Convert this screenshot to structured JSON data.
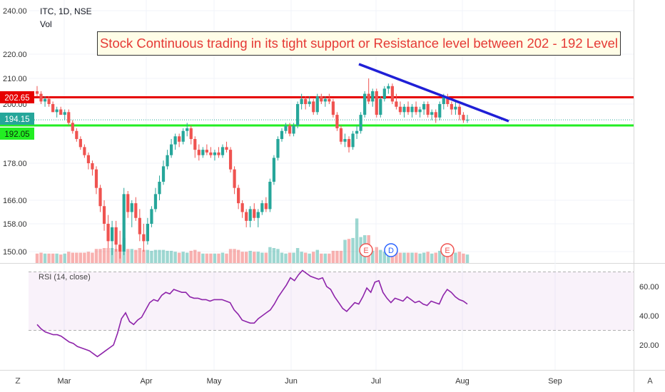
{
  "header": {
    "symbol_line": "ITC, 1D, NSE",
    "volume_label": "Vol"
  },
  "annotation": {
    "text": "Stock Continuous trading in its tight support or Resistance level between 202 - 192 Level",
    "color": "#e53935"
  },
  "colors": {
    "up": "#26a69a",
    "down": "#ef5350",
    "resistance_line": "#e60000",
    "support_line": "#22ee22",
    "trendline": "#1f1fd6",
    "rsi_line": "#8e24aa"
  },
  "price_axis": {
    "ticks": [
      "240.00",
      "220.00",
      "210.00",
      "200.00",
      "178.00",
      "166.00",
      "158.00",
      "150.00"
    ],
    "tick_values": [
      240,
      220,
      210,
      200,
      178,
      166,
      158,
      150
    ],
    "badges": [
      {
        "label": "202.65",
        "value": 202.65,
        "color": "#e60000"
      },
      {
        "label": "194.15",
        "value": 194.15,
        "color": "#26a69a"
      },
      {
        "label": "192.05",
        "value": 192.05,
        "color": "#22ee22"
      }
    ]
  },
  "time_axis": {
    "labels": [
      "Mar",
      "Apr",
      "May",
      "Jun",
      "Jul",
      "Aug",
      "Sep"
    ]
  },
  "events": [
    {
      "label": "E",
      "color": "#ef5350"
    },
    {
      "label": "D",
      "color": "#2962ff"
    },
    {
      "label": "E",
      "color": "#ef5350"
    }
  ],
  "rsi_panel": {
    "label": "RSI (14, close)",
    "ticks": [
      "60.00",
      "40.00",
      "20.00"
    ],
    "tick_values": [
      60,
      40,
      20
    ],
    "upper_band": 70,
    "lower_band": 30
  },
  "corner_buttons": {
    "left": "Z",
    "right": "A"
  },
  "chart_data": {
    "type": "candlestick",
    "title": "ITC, 1D, NSE",
    "ylim": [
      147,
      244
    ],
    "levels": {
      "resistance": 202.65,
      "support": 192.05,
      "last": 194.15
    },
    "trendline": {
      "start": [
        "Jun 26",
        214
      ],
      "end": [
        "Aug 16",
        195
      ]
    },
    "candles_ohlc": [
      [
        205,
        207,
        203,
        204
      ],
      [
        204,
        205,
        200,
        201
      ],
      [
        201,
        203,
        199,
        202
      ],
      [
        202,
        203,
        199,
        200
      ],
      [
        200,
        201,
        197,
        197
      ],
      [
        197,
        199,
        195,
        198
      ],
      [
        198,
        199,
        196,
        196
      ],
      [
        196,
        198,
        194,
        197
      ],
      [
        197,
        198,
        192,
        193
      ],
      [
        193,
        194,
        189,
        190
      ],
      [
        190,
        191,
        186,
        187
      ],
      [
        187,
        188,
        183,
        184
      ],
      [
        184,
        185,
        180,
        181
      ],
      [
        181,
        182,
        176,
        178
      ],
      [
        178,
        179,
        174,
        176
      ],
      [
        176,
        177,
        168,
        170
      ],
      [
        170,
        171,
        162,
        164
      ],
      [
        164,
        166,
        156,
        158
      ],
      [
        158,
        161,
        151,
        153
      ],
      [
        153,
        159,
        149,
        157
      ],
      [
        157,
        159,
        150,
        152
      ],
      [
        152,
        156,
        148,
        150
      ],
      [
        150,
        170,
        149,
        168
      ],
      [
        168,
        169,
        160,
        162
      ],
      [
        162,
        166,
        157,
        165
      ],
      [
        165,
        167,
        159,
        160
      ],
      [
        160,
        163,
        153,
        155
      ],
      [
        155,
        158,
        150,
        153
      ],
      [
        153,
        160,
        152,
        158
      ],
      [
        158,
        164,
        157,
        163
      ],
      [
        163,
        170,
        162,
        168
      ],
      [
        168,
        174,
        166,
        172
      ],
      [
        172,
        179,
        171,
        177
      ],
      [
        177,
        183,
        176,
        181
      ],
      [
        181,
        187,
        180,
        185
      ],
      [
        185,
        189,
        183,
        188
      ],
      [
        188,
        189,
        184,
        186
      ],
      [
        186,
        191,
        185,
        190
      ],
      [
        190,
        193,
        188,
        191
      ],
      [
        191,
        192,
        185,
        187
      ],
      [
        187,
        188,
        180,
        183
      ],
      [
        183,
        185,
        179,
        181
      ],
      [
        181,
        184,
        180,
        183
      ],
      [
        183,
        185,
        181,
        182
      ],
      [
        182,
        184,
        180,
        181
      ],
      [
        181,
        183,
        179,
        182
      ],
      [
        182,
        184,
        180,
        181
      ],
      [
        181,
        185,
        180,
        184
      ],
      [
        184,
        186,
        182,
        183
      ],
      [
        183,
        184,
        175,
        176
      ],
      [
        176,
        177,
        168,
        170
      ],
      [
        170,
        171,
        163,
        165
      ],
      [
        165,
        166,
        160,
        162
      ],
      [
        162,
        163,
        157,
        159
      ],
      [
        159,
        164,
        157,
        163
      ],
      [
        163,
        165,
        159,
        160
      ],
      [
        160,
        163,
        157,
        162
      ],
      [
        162,
        166,
        161,
        165
      ],
      [
        165,
        167,
        162,
        163
      ],
      [
        163,
        173,
        162,
        172
      ],
      [
        172,
        181,
        171,
        180
      ],
      [
        180,
        188,
        179,
        187
      ],
      [
        187,
        191,
        186,
        190
      ],
      [
        190,
        193,
        189,
        192
      ],
      [
        192,
        193,
        188,
        189
      ],
      [
        189,
        193,
        188,
        192
      ],
      [
        192,
        201,
        191,
        200
      ],
      [
        200,
        204,
        198,
        202
      ],
      [
        202,
        203,
        198,
        200
      ],
      [
        200,
        203,
        199,
        201
      ],
      [
        201,
        202,
        196,
        197
      ],
      [
        197,
        204,
        196,
        203
      ],
      [
        203,
        204,
        200,
        201
      ],
      [
        201,
        203,
        199,
        202
      ],
      [
        202,
        204,
        200,
        201
      ],
      [
        201,
        202,
        195,
        196
      ],
      [
        196,
        197,
        190,
        191
      ],
      [
        191,
        192,
        185,
        186
      ],
      [
        186,
        189,
        184,
        187
      ],
      [
        187,
        188,
        182,
        184
      ],
      [
        184,
        190,
        183,
        189
      ],
      [
        189,
        192,
        187,
        190
      ],
      [
        190,
        197,
        189,
        196
      ],
      [
        196,
        205,
        195,
        204
      ],
      [
        204,
        210,
        200,
        201
      ],
      [
        201,
        206,
        199,
        205
      ],
      [
        205,
        206,
        195,
        196
      ],
      [
        196,
        203,
        195,
        202
      ],
      [
        202,
        207,
        201,
        206
      ],
      [
        206,
        208,
        204,
        207
      ],
      [
        207,
        208,
        200,
        201
      ],
      [
        201,
        204,
        198,
        199
      ],
      [
        199,
        201,
        196,
        197
      ],
      [
        197,
        200,
        195,
        199
      ],
      [
        199,
        201,
        196,
        197
      ],
      [
        197,
        200,
        195,
        199
      ],
      [
        199,
        201,
        196,
        197
      ],
      [
        197,
        199,
        195,
        198
      ],
      [
        198,
        201,
        196,
        200
      ],
      [
        200,
        201,
        195,
        196
      ],
      [
        196,
        198,
        194,
        197
      ],
      [
        197,
        198,
        193,
        195
      ],
      [
        195,
        201,
        194,
        200
      ],
      [
        200,
        204,
        198,
        203
      ],
      [
        203,
        204,
        199,
        200
      ],
      [
        200,
        201,
        196,
        198
      ],
      [
        198,
        201,
        196,
        199
      ],
      [
        199,
        200,
        194,
        196
      ],
      [
        196,
        197,
        193,
        194
      ],
      [
        194,
        196,
        193,
        194.15
      ]
    ],
    "rsi": [
      34,
      31,
      29,
      28,
      27,
      27,
      26,
      24,
      22,
      21,
      19,
      18,
      17,
      16,
      14,
      12,
      14,
      16,
      18,
      20,
      28,
      38,
      42,
      36,
      34,
      37,
      39,
      44,
      49,
      51,
      50,
      54,
      56,
      55,
      58,
      57,
      56,
      56,
      53,
      52,
      52,
      51,
      51,
      50,
      51,
      51,
      51,
      50,
      49,
      44,
      41,
      37,
      36,
      35,
      35,
      38,
      40,
      42,
      44,
      48,
      53,
      57,
      61,
      66,
      64,
      68,
      71,
      69,
      67,
      66,
      65,
      66,
      60,
      58,
      53,
      49,
      45,
      43,
      46,
      49,
      48,
      53,
      59,
      56,
      63,
      64,
      56,
      52,
      49,
      52,
      51,
      50,
      53,
      51,
      49,
      50,
      48,
      47,
      50,
      49,
      48,
      54,
      58,
      56,
      53,
      51,
      50,
      48
    ]
  }
}
